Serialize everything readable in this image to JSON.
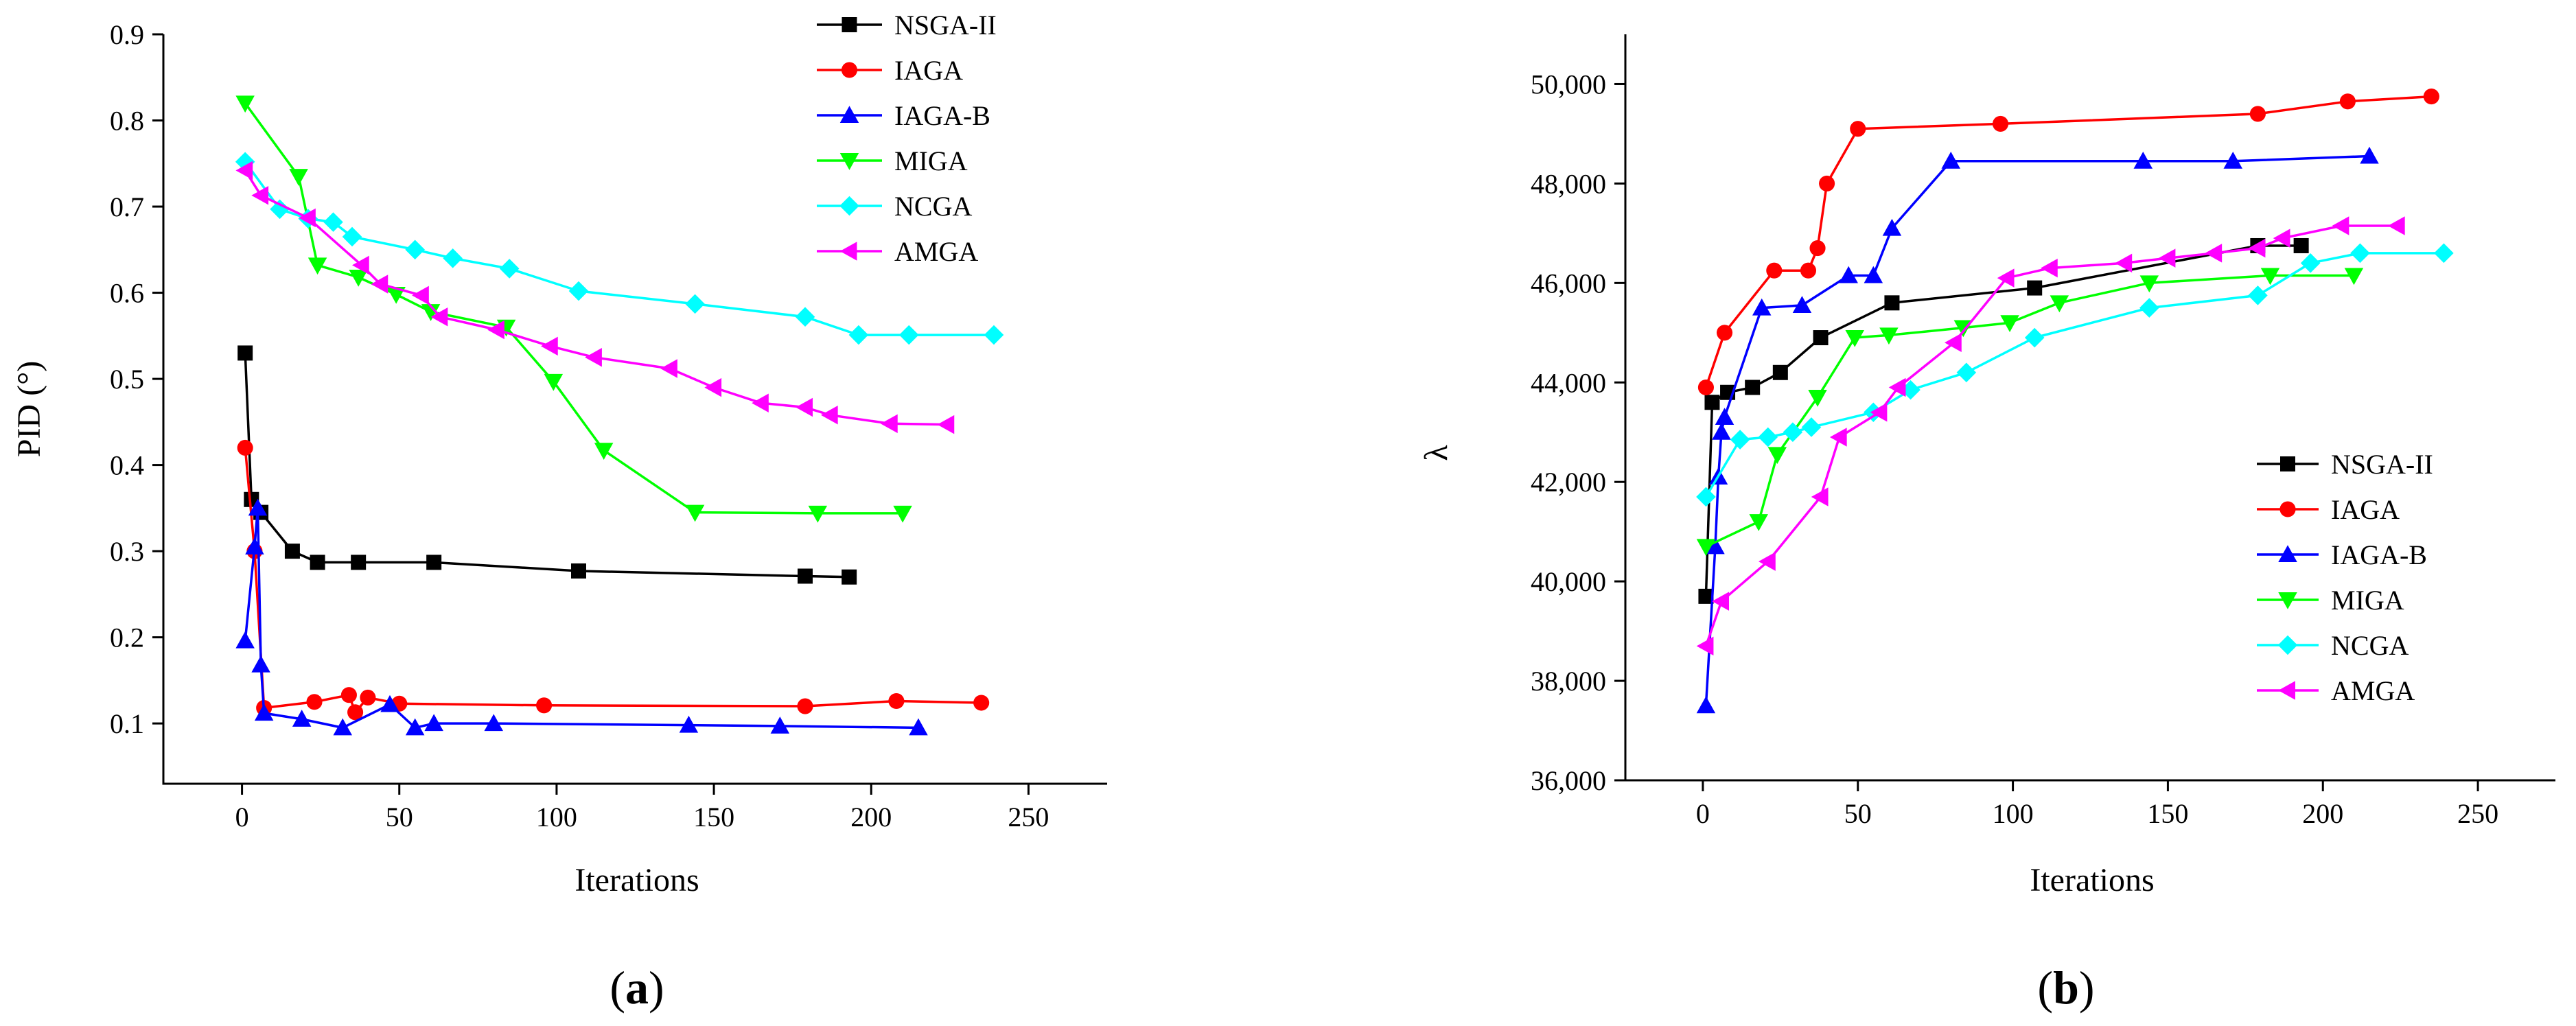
{
  "chart_data": [
    {
      "type": "line",
      "panel_label": "a",
      "title": "",
      "xlabel": "Iterations",
      "ylabel": "PID (°)",
      "xlim": [
        -25,
        275
      ],
      "ylim": [
        0.03,
        0.9
      ],
      "xticks": [
        0,
        50,
        100,
        150,
        200,
        250
      ],
      "yticks": [
        0.1,
        0.2,
        0.3,
        0.4,
        0.5,
        0.6,
        0.7,
        0.8,
        0.9
      ],
      "xtick_labels": [
        "0",
        "50",
        "100",
        "150",
        "200",
        "250"
      ],
      "ytick_labels": [
        "0.1",
        "0.2",
        "0.3",
        "0.4",
        "0.5",
        "0.6",
        "0.7",
        "0.8",
        "0.9"
      ],
      "grid": false,
      "legend_position": "top-right, outside above plot",
      "series": [
        {
          "name": "NSGA-II",
          "color": "#000000",
          "marker": "square",
          "x": [
            1,
            3,
            6,
            16,
            24,
            37,
            61,
            107,
            179,
            193
          ],
          "y": [
            0.53,
            0.36,
            0.345,
            0.3,
            0.287,
            0.287,
            0.287,
            0.277,
            0.271,
            0.27
          ]
        },
        {
          "name": "IAGA",
          "color": "#ff0000",
          "marker": "circle",
          "x": [
            1,
            4,
            7,
            23,
            34,
            36,
            40,
            50,
            96,
            179,
            208,
            235
          ],
          "y": [
            0.42,
            0.3,
            0.118,
            0.125,
            0.133,
            0.113,
            0.13,
            0.123,
            0.121,
            0.12,
            0.126,
            0.124
          ]
        },
        {
          "name": "IAGA-B",
          "color": "#0000ff",
          "marker": "triangle-up",
          "x": [
            1,
            4,
            5,
            6,
            7,
            19,
            32,
            47,
            55,
            61,
            80,
            142,
            171,
            215
          ],
          "y": [
            0.196,
            0.305,
            0.35,
            0.168,
            0.112,
            0.105,
            0.095,
            0.122,
            0.095,
            0.1,
            0.1,
            0.098,
            0.097,
            0.095
          ]
        },
        {
          "name": "MIGA",
          "color": "#00ff00",
          "marker": "triangle-down",
          "x": [
            1,
            18,
            24,
            37,
            49,
            60,
            84,
            99,
            115,
            144,
            183,
            210
          ],
          "y": [
            0.82,
            0.735,
            0.632,
            0.618,
            0.598,
            0.578,
            0.56,
            0.497,
            0.417,
            0.345,
            0.344,
            0.344
          ]
        },
        {
          "name": "NCGA",
          "color": "#00ffff",
          "marker": "diamond",
          "x": [
            1,
            12,
            21,
            29,
            35,
            55,
            67,
            85,
            107,
            144,
            179,
            196,
            212,
            239
          ],
          "y": [
            0.752,
            0.697,
            0.686,
            0.682,
            0.665,
            0.65,
            0.64,
            0.628,
            0.602,
            0.587,
            0.572,
            0.551,
            0.551,
            0.551
          ]
        },
        {
          "name": "AMGA",
          "color": "#ff00ff",
          "marker": "triangle-left",
          "x": [
            1,
            6,
            21,
            38,
            44,
            57,
            63,
            81,
            98,
            112,
            136,
            150,
            165,
            179,
            187,
            206,
            224
          ],
          "y": [
            0.742,
            0.713,
            0.687,
            0.632,
            0.61,
            0.597,
            0.572,
            0.557,
            0.538,
            0.525,
            0.512,
            0.49,
            0.472,
            0.467,
            0.458,
            0.448,
            0.447
          ]
        }
      ]
    },
    {
      "type": "line",
      "panel_label": "b",
      "title": "",
      "xlabel": "Iterations",
      "ylabel": "λ",
      "xlim": [
        -25,
        275
      ],
      "ylim": [
        36000,
        51000
      ],
      "xticks": [
        0,
        50,
        100,
        150,
        200,
        250
      ],
      "yticks": [
        36000,
        38000,
        40000,
        42000,
        44000,
        46000,
        48000,
        50000
      ],
      "xtick_labels": [
        "0",
        "50",
        "100",
        "150",
        "200",
        "250"
      ],
      "ytick_labels": [
        "36,000",
        "38,000",
        "40,000",
        "42,000",
        "44,000",
        "46,000",
        "48,000",
        "50,000"
      ],
      "grid": false,
      "legend_position": "bottom-right, inside plot",
      "series": [
        {
          "name": "NSGA-II",
          "color": "#000000",
          "marker": "square",
          "x": [
            1,
            3,
            8,
            16,
            25,
            38,
            61,
            107,
            179,
            193
          ],
          "y": [
            39700,
            43600,
            43800,
            43900,
            44200,
            44900,
            45600,
            45900,
            46750,
            46750
          ]
        },
        {
          "name": "IAGA",
          "color": "#ff0000",
          "marker": "circle",
          "x": [
            1,
            7,
            23,
            34,
            37,
            40,
            50,
            96,
            179,
            208,
            235
          ],
          "y": [
            43900,
            45000,
            46250,
            46250,
            46700,
            48000,
            49100,
            49200,
            49400,
            49650,
            49750
          ]
        },
        {
          "name": "IAGA-B",
          "color": "#0000ff",
          "marker": "triangle-up",
          "x": [
            1,
            4,
            5,
            6,
            7,
            19,
            32,
            47,
            55,
            61,
            80,
            142,
            171,
            215
          ],
          "y": [
            37500,
            40700,
            42100,
            43000,
            43300,
            45500,
            45550,
            46150,
            46150,
            47100,
            48450,
            48450,
            48450,
            48550
          ]
        },
        {
          "name": "MIGA",
          "color": "#00ff00",
          "marker": "triangle-down",
          "x": [
            1,
            18,
            24,
            37,
            49,
            60,
            84,
            99,
            115,
            144,
            183,
            210
          ],
          "y": [
            40700,
            41200,
            42550,
            43700,
            44900,
            44950,
            45100,
            45200,
            45600,
            46000,
            46150,
            46150
          ]
        },
        {
          "name": "NCGA",
          "color": "#00ffff",
          "marker": "diamond",
          "x": [
            1,
            12,
            21,
            29,
            35,
            55,
            67,
            85,
            107,
            144,
            179,
            196,
            212,
            239
          ],
          "y": [
            41700,
            42850,
            42900,
            43000,
            43100,
            43400,
            43850,
            44200,
            44900,
            45500,
            45750,
            46400,
            46600,
            46600
          ]
        },
        {
          "name": "AMGA",
          "color": "#ff00ff",
          "marker": "triangle-left",
          "x": [
            1,
            6,
            21,
            38,
            44,
            57,
            63,
            81,
            98,
            112,
            136,
            150,
            165,
            179,
            187,
            206,
            224
          ],
          "y": [
            38700,
            39600,
            40400,
            41700,
            42900,
            43400,
            43900,
            44800,
            46100,
            46300,
            46400,
            46500,
            46600,
            46700,
            46900,
            47150,
            47150
          ]
        }
      ]
    }
  ]
}
